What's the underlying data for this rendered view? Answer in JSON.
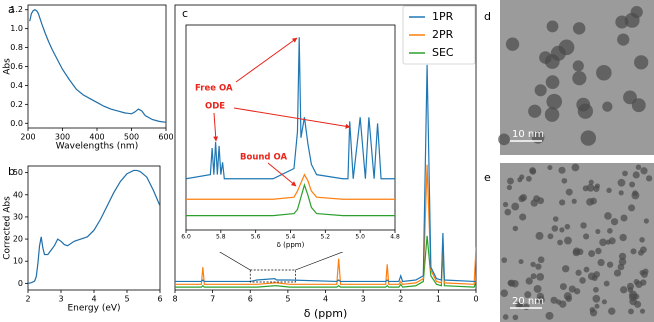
{
  "chart_data": [
    {
      "type": "line",
      "panel_label": "a",
      "xlabel": "Wavelengths (nm)",
      "ylabel": "Abs",
      "color": "#1f6ea8",
      "x": [
        205,
        210,
        215,
        220,
        225,
        230,
        240,
        250,
        260,
        270,
        280,
        290,
        300,
        320,
        340,
        360,
        380,
        400,
        420,
        440,
        460,
        480,
        500,
        510,
        520,
        530,
        540,
        560,
        580,
        600
      ],
      "values": [
        1.08,
        1.16,
        1.19,
        1.2,
        1.19,
        1.16,
        1.05,
        0.95,
        0.86,
        0.78,
        0.71,
        0.64,
        0.57,
        0.46,
        0.36,
        0.3,
        0.26,
        0.22,
        0.18,
        0.15,
        0.13,
        0.11,
        0.1,
        0.12,
        0.15,
        0.13,
        0.08,
        0.04,
        0.02,
        0.01
      ],
      "xlim": [
        200,
        600
      ],
      "xticks": [
        200,
        300,
        400,
        500,
        600
      ],
      "ylim": [
        -0.05,
        1.25
      ],
      "yticks": [
        {
          "value": 0,
          "label": "0.0"
        },
        0.2,
        0.4,
        0.6,
        0.8,
        {
          "value": 1,
          "label": "1.0"
        },
        1.2
      ]
    },
    {
      "type": "line",
      "panel_label": "b",
      "xlabel": "Energy (eV)",
      "ylabel": "Corrected Abs",
      "color": "#1f6ea8",
      "x": [
        2.0,
        2.1,
        2.2,
        2.25,
        2.3,
        2.35,
        2.4,
        2.45,
        2.5,
        2.6,
        2.7,
        2.8,
        2.9,
        3.0,
        3.1,
        3.2,
        3.4,
        3.6,
        3.8,
        4.0,
        4.2,
        4.4,
        4.6,
        4.8,
        5.0,
        5.2,
        5.3,
        5.4,
        5.6,
        5.8,
        6.0
      ],
      "values": [
        0,
        0.3,
        1,
        3,
        9,
        17,
        21,
        16,
        13,
        13,
        15,
        17,
        20,
        19,
        17.5,
        17,
        19,
        20,
        21,
        24,
        29,
        35,
        41,
        46,
        49.5,
        51,
        51,
        50.5,
        48,
        42,
        35
      ],
      "xlim": [
        2,
        6
      ],
      "xticks": [
        2,
        3,
        4,
        5,
        6
      ],
      "ylim": [
        -3,
        53
      ],
      "yticks": [
        0,
        10,
        20,
        30,
        40,
        50
      ]
    },
    {
      "type": "line",
      "panel_label": "c",
      "xlabel": "δ (ppm)",
      "x": [
        8,
        7.3,
        7.26,
        7.22,
        6.0,
        5.82,
        5.35,
        5.3,
        4.95,
        3.7,
        3.65,
        3.6,
        2.4,
        2.36,
        2.32,
        2.05,
        2.0,
        1.95,
        1.6,
        1.4,
        1.3,
        1.2,
        1.05,
        0.92,
        0.88,
        0.84,
        0.05,
        0.0
      ],
      "series": [
        {
          "name": "1PR",
          "color": "#1f77b4",
          "values": [
            3,
            3,
            3.5,
            3,
            3,
            3.5,
            4,
            3.5,
            3.5,
            3,
            3.5,
            3,
            3,
            3.5,
            3,
            3,
            5,
            3,
            3.5,
            5,
            79,
            8,
            4,
            3.5,
            20,
            3.5,
            3,
            3
          ]
        },
        {
          "name": "2PR",
          "color": "#ff7f0e",
          "values": [
            2,
            2,
            8,
            2,
            2,
            2,
            2.5,
            2.5,
            2,
            2,
            11,
            2,
            2,
            9,
            2,
            2,
            3,
            2,
            2.5,
            4,
            44,
            7,
            3,
            2.5,
            16,
            2.5,
            2,
            15
          ]
        },
        {
          "name": "SEC",
          "color": "#2ca02c",
          "values": [
            1,
            1,
            1.5,
            1,
            1,
            1,
            1.5,
            1.5,
            1,
            1,
            1.5,
            1,
            1,
            1.5,
            1,
            1,
            2,
            1,
            1.5,
            3,
            19,
            5,
            2,
            1.5,
            14,
            1.5,
            1,
            3
          ]
        }
      ],
      "xlim": [
        8,
        0
      ],
      "xticks": [
        8,
        7,
        6,
        5,
        4,
        3,
        2,
        1,
        0
      ],
      "ylim": [
        0,
        100
      ]
    },
    {
      "type": "line",
      "xlabel": "δ (ppm)",
      "x": [
        6.0,
        5.86,
        5.85,
        5.84,
        5.83,
        5.82,
        5.81,
        5.8,
        5.79,
        5.78,
        5.5,
        5.38,
        5.36,
        5.35,
        5.34,
        5.32,
        5.3,
        5.28,
        5.25,
        5.1,
        5.07,
        5.06,
        5.04,
        5.0,
        4.97,
        4.95,
        4.92,
        4.9,
        4.88,
        4.8
      ],
      "series": [
        {
          "name": "1PR",
          "color": "#1f77b4",
          "values": [
            25,
            27,
            40,
            27,
            43,
            27,
            41,
            27,
            33,
            25,
            25,
            30,
            48,
            94,
            45,
            55,
            42,
            32,
            27,
            25,
            25,
            53,
            25,
            55,
            25,
            55,
            25,
            52,
            25,
            25
          ]
        },
        {
          "name": "2PR",
          "color": "#ff7f0e",
          "values": [
            15,
            15,
            15,
            15,
            15,
            15,
            15,
            15,
            15,
            15,
            15,
            16,
            19,
            21,
            23,
            27,
            24,
            19,
            16,
            15,
            15,
            15,
            15,
            15,
            15,
            15,
            15,
            15,
            15,
            15
          ]
        },
        {
          "name": "SEC",
          "color": "#2ca02c",
          "values": [
            7,
            7,
            7,
            7,
            7,
            7,
            7,
            7,
            7,
            7,
            7,
            8,
            10,
            13,
            16,
            22,
            17,
            11,
            8,
            7,
            7,
            7,
            7,
            7,
            7,
            7,
            7,
            7,
            7,
            7
          ]
        }
      ],
      "xlim": [
        6.0,
        4.8
      ],
      "xticks": [
        {
          "value": 6,
          "label": "6.0"
        },
        5.8,
        5.6,
        5.4,
        5.2,
        {
          "value": 5,
          "label": "5.0"
        },
        4.8
      ],
      "ylim": [
        0,
        100
      ],
      "annotations": [
        "Free OA",
        "ODE",
        "Bound OA"
      ],
      "annotation_color": "#e8251b"
    }
  ],
  "images": [
    {
      "label": "d",
      "scale_bar": "10 nm"
    },
    {
      "label": "e",
      "scale_bar": "20 nm"
    }
  ]
}
